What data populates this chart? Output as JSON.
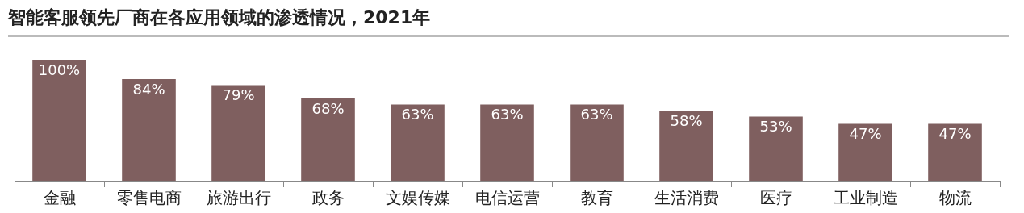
{
  "chart_data": {
    "type": "bar",
    "title": "智能客服领先厂商在各应用领域的渗透情况，2021年",
    "categories": [
      "金融",
      "零售电商",
      "旅游出行",
      "政务",
      "文娱传媒",
      "电信运营",
      "教育",
      "生活消费",
      "医疗",
      "工业制造",
      "物流"
    ],
    "values": [
      100,
      84,
      79,
      68,
      63,
      63,
      63,
      58,
      53,
      47,
      47
    ],
    "value_labels": [
      "100%",
      "84%",
      "79%",
      "68%",
      "63%",
      "63%",
      "63%",
      "58%",
      "53%",
      "47%",
      "47%"
    ],
    "color": "#7f5f5f",
    "grid": false,
    "legend": false
  }
}
